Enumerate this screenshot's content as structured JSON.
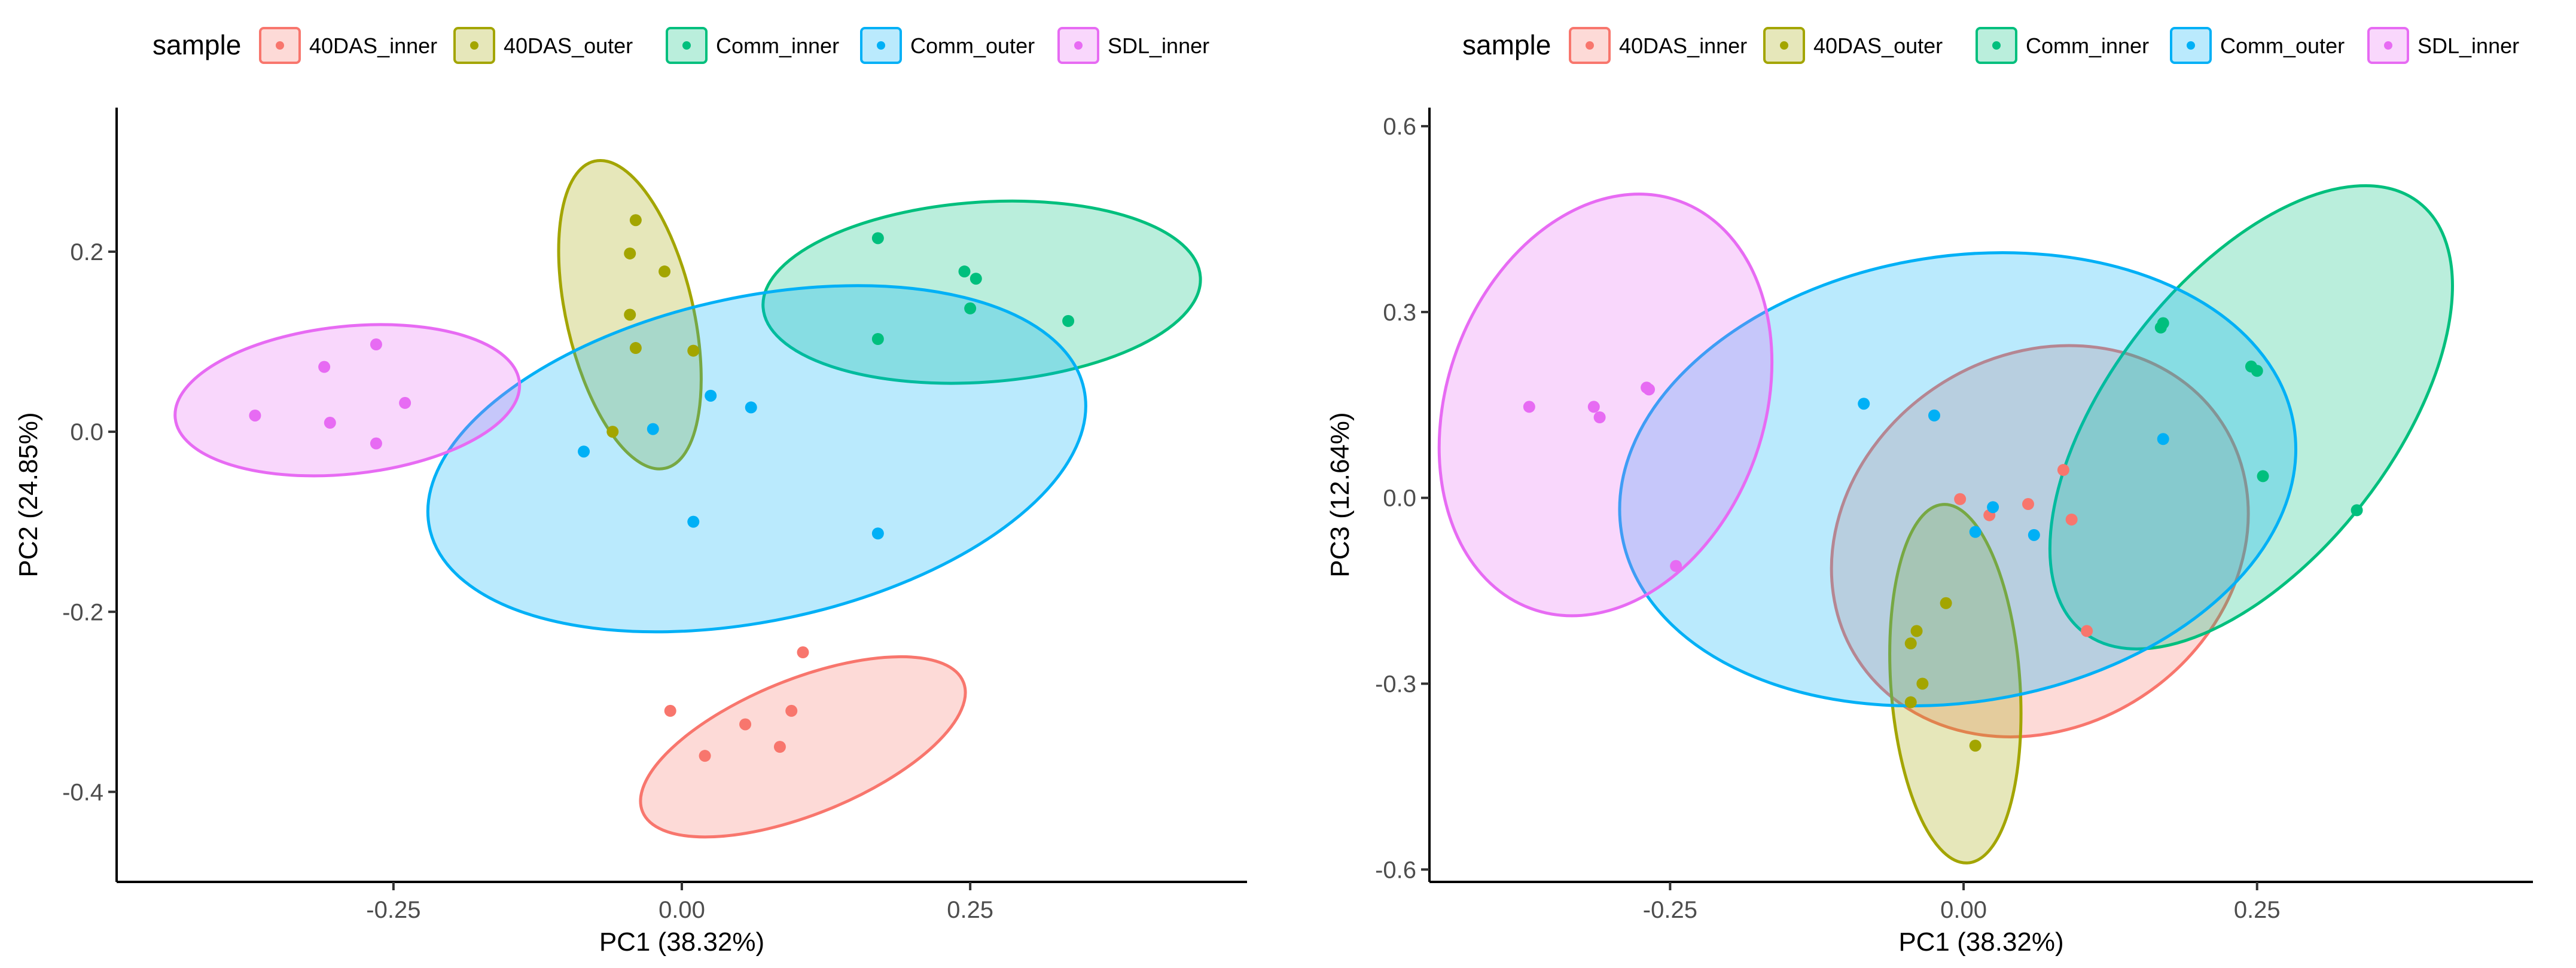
{
  "colors": {
    "40DAS_inner": "#F8766D",
    "40DAS_outer": "#A3A500",
    "Comm_inner": "#00BF7D",
    "Comm_outer": "#00B0F6",
    "SDL_inner": "#E76BF3"
  },
  "chart_data": [
    {
      "type": "scatter",
      "title": "",
      "xlabel": "PC1 (38.32%)",
      "ylabel": "PC2 (24.85%)",
      "xlim": [
        -0.49,
        0.49
      ],
      "ylim": [
        -0.5,
        0.36
      ],
      "xticks": [
        -0.25,
        0.0,
        0.25
      ],
      "xtick_labels": [
        "-0.25",
        "0.00",
        "0.25"
      ],
      "yticks": [
        -0.4,
        -0.2,
        0.0,
        0.2
      ],
      "ytick_labels": [
        "-0.4",
        "-0.2",
        "0.0",
        "0.2"
      ],
      "legend": {
        "title": "sample",
        "position": "top",
        "entries": [
          "40DAS_inner",
          "40DAS_outer",
          "Comm_inner",
          "Comm_outer",
          "SDL_inner"
        ]
      },
      "grid": false,
      "series": [
        {
          "name": "40DAS_inner",
          "points": [
            [
              -0.01,
              -0.31
            ],
            [
              0.02,
              -0.36
            ],
            [
              0.055,
              -0.325
            ],
            [
              0.085,
              -0.35
            ],
            [
              0.095,
              -0.31
            ],
            [
              0.105,
              -0.245
            ]
          ],
          "ellipse": {
            "cx": 0.105,
            "cy": -0.35,
            "rx": 0.15,
            "ry": 0.075,
            "angle_deg": -22
          }
        },
        {
          "name": "40DAS_outer",
          "points": [
            [
              -0.04,
              0.235
            ],
            [
              -0.045,
              0.198
            ],
            [
              -0.015,
              0.178
            ],
            [
              -0.045,
              0.13
            ],
            [
              -0.04,
              0.093
            ],
            [
              0.01,
              0.09
            ],
            [
              -0.06,
              0.0
            ]
          ],
          "ellipse": {
            "cx": -0.045,
            "cy": 0.13,
            "rx": 0.055,
            "ry": 0.175,
            "angle_deg": -13
          }
        },
        {
          "name": "Comm_inner",
          "points": [
            [
              0.17,
              0.215
            ],
            [
              0.245,
              0.178
            ],
            [
              0.255,
              0.17
            ],
            [
              0.25,
              0.137
            ],
            [
              0.335,
              0.123
            ],
            [
              0.17,
              0.103
            ]
          ],
          "ellipse": {
            "cx": 0.26,
            "cy": 0.155,
            "rx": 0.19,
            "ry": 0.1,
            "angle_deg": -4
          }
        },
        {
          "name": "Comm_outer",
          "points": [
            [
              0.025,
              0.04
            ],
            [
              0.06,
              0.027
            ],
            [
              -0.025,
              0.003
            ],
            [
              -0.085,
              -0.022
            ],
            [
              0.01,
              -0.1
            ],
            [
              0.17,
              -0.113
            ]
          ],
          "ellipse": {
            "cx": 0.065,
            "cy": -0.03,
            "rx": 0.29,
            "ry": 0.18,
            "angle_deg": -12
          }
        },
        {
          "name": "SDL_inner",
          "points": [
            [
              -0.37,
              0.018
            ],
            [
              -0.31,
              0.072
            ],
            [
              -0.305,
              0.01
            ],
            [
              -0.265,
              0.097
            ],
            [
              -0.265,
              -0.013
            ],
            [
              -0.24,
              0.032
            ]
          ],
          "ellipse": {
            "cx": -0.29,
            "cy": 0.035,
            "rx": 0.15,
            "ry": 0.082,
            "angle_deg": -6
          }
        }
      ]
    },
    {
      "type": "scatter",
      "title": "",
      "xlabel": "PC1 (38.32%)",
      "ylabel": "PC3 (12.64%)",
      "xlim": [
        -0.455,
        0.485
      ],
      "ylim": [
        -0.62,
        0.63
      ],
      "xticks": [
        -0.25,
        0.0,
        0.25
      ],
      "xtick_labels": [
        "-0.25",
        "0.00",
        "0.25"
      ],
      "yticks": [
        -0.6,
        -0.3,
        0.0,
        0.3,
        0.6
      ],
      "ytick_labels": [
        "-0.6",
        "-0.3",
        "0.0",
        "0.3",
        "0.6"
      ],
      "legend": {
        "title": "sample",
        "position": "top",
        "entries": [
          "40DAS_inner",
          "40DAS_outer",
          "Comm_inner",
          "Comm_outer",
          "SDL_inner"
        ]
      },
      "grid": false,
      "series": [
        {
          "name": "40DAS_inner",
          "points": [
            [
              -0.003,
              -0.002
            ],
            [
              0.022,
              -0.028
            ],
            [
              0.055,
              -0.01
            ],
            [
              0.085,
              0.045
            ],
            [
              0.092,
              -0.035
            ],
            [
              0.105,
              -0.215
            ]
          ],
          "ellipse": {
            "cx": 0.065,
            "cy": -0.07,
            "rx": 0.185,
            "ry": 0.3,
            "angle_deg": -33
          }
        },
        {
          "name": "40DAS_outer",
          "points": [
            [
              -0.015,
              -0.17
            ],
            [
              -0.04,
              -0.215
            ],
            [
              -0.045,
              -0.235
            ],
            [
              -0.035,
              -0.3
            ],
            [
              -0.045,
              -0.33
            ],
            [
              0.01,
              -0.4
            ]
          ],
          "ellipse": {
            "cx": -0.007,
            "cy": -0.3,
            "rx": 0.055,
            "ry": 0.29,
            "angle_deg": -4
          }
        },
        {
          "name": "Comm_inner",
          "points": [
            [
              0.17,
              0.282
            ],
            [
              0.168,
              0.275
            ],
            [
              0.245,
              0.212
            ],
            [
              0.25,
              0.205
            ],
            [
              0.255,
              0.035
            ],
            [
              0.335,
              -0.02
            ]
          ],
          "ellipse": {
            "cx": 0.245,
            "cy": 0.13,
            "rx": 0.12,
            "ry": 0.44,
            "angle_deg": 38
          }
        },
        {
          "name": "Comm_outer",
          "points": [
            [
              -0.085,
              0.152
            ],
            [
              -0.025,
              0.133
            ],
            [
              0.025,
              -0.015
            ],
            [
              0.01,
              -0.055
            ],
            [
              0.06,
              -0.06
            ],
            [
              0.17,
              0.095
            ]
          ],
          "ellipse": {
            "cx": -0.005,
            "cy": 0.03,
            "rx": 0.29,
            "ry": 0.36,
            "angle_deg": -9
          }
        },
        {
          "name": "SDL_inner",
          "points": [
            [
              -0.37,
              0.147
            ],
            [
              -0.315,
              0.147
            ],
            [
              -0.31,
              0.13
            ],
            [
              -0.27,
              0.178
            ],
            [
              -0.268,
              0.175
            ],
            [
              -0.245,
              -0.11
            ]
          ],
          "ellipse": {
            "cx": -0.305,
            "cy": 0.15,
            "rx": 0.135,
            "ry": 0.35,
            "angle_deg": 20
          }
        }
      ]
    }
  ]
}
